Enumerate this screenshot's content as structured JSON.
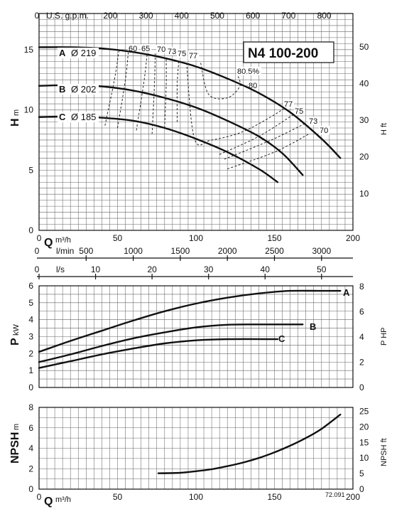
{
  "title": "N4 100-200",
  "footnote": "72.091",
  "chart_data": [
    {
      "id": "head",
      "type": "line",
      "title": "N4 100-200",
      "ylabel": "H",
      "ylabel_unit": "m",
      "y2label": "H ft",
      "xlabel": "Q",
      "xlabel_unit": "m³/h",
      "xlim": [
        0,
        200
      ],
      "ylim": [
        0,
        18
      ],
      "y2lim": [
        0,
        59.055
      ],
      "x_ticks": [
        0,
        50,
        100,
        150,
        200
      ],
      "y_ticks": [
        0,
        5,
        10,
        15
      ],
      "y2_ticks": [
        10,
        20,
        30,
        40,
        50
      ],
      "top_axis": {
        "label": "U.S. g.p.m.",
        "factor": 4.4029,
        "ticks": [
          200,
          300,
          400,
          500,
          600,
          700,
          800
        ]
      },
      "bottom_axis2": {
        "label": "l/min",
        "factor": 16.6667,
        "ticks": [
          500,
          1000,
          1500,
          2000,
          2500,
          3000
        ]
      },
      "bottom_axis3": {
        "label": "l/s",
        "factor": 0.27778,
        "ticks": [
          0,
          10,
          20,
          30,
          40,
          50
        ]
      },
      "grid": true,
      "series": [
        {
          "name": "A",
          "diameter_label": "Ø 219",
          "x": [
            0,
            20,
            40,
            60,
            80,
            100,
            120,
            140,
            160,
            180,
            192
          ],
          "y": [
            15.2,
            15.2,
            15.1,
            14.8,
            14.3,
            13.6,
            12.6,
            11.4,
            9.8,
            7.6,
            6.0
          ]
        },
        {
          "name": "B",
          "diameter_label": "Ø 202",
          "x": [
            0,
            20,
            40,
            60,
            80,
            100,
            120,
            140,
            155,
            168
          ],
          "y": [
            12.0,
            12.05,
            11.95,
            11.6,
            11.0,
            10.2,
            9.1,
            7.8,
            6.4,
            4.6
          ]
        },
        {
          "name": "C",
          "diameter_label": "Ø 185",
          "x": [
            0,
            20,
            40,
            60,
            80,
            100,
            120,
            140,
            152
          ],
          "y": [
            9.4,
            9.45,
            9.35,
            9.1,
            8.5,
            7.6,
            6.5,
            5.1,
            4.0
          ]
        }
      ],
      "efficiency_labels": [
        "60",
        "65",
        "70",
        "73",
        "75",
        "77",
        "80.5%",
        "80",
        "77",
        "75",
        "73",
        "70"
      ],
      "efficiency_curves": [
        {
          "name": "60",
          "x": [
            42,
            48,
            51
          ],
          "y": [
            8.7,
            12.5,
            15.0
          ]
        },
        {
          "name": "65",
          "x": [
            50,
            55,
            57
          ],
          "y": [
            8.5,
            12.5,
            15.0
          ]
        },
        {
          "name": "70",
          "x": [
            62,
            67,
            69
          ],
          "y": [
            8.3,
            12.5,
            14.8
          ]
        },
        {
          "name": "73",
          "x": [
            72,
            73.5,
            74
          ],
          "y": [
            8.0,
            12.0,
            14.7
          ]
        },
        {
          "name": "75",
          "x": [
            80,
            81,
            81
          ],
          "y": [
            8.5,
            12.0,
            14.3
          ]
        },
        {
          "name": "77",
          "x": [
            88,
            88,
            89
          ],
          "y": [
            9.0,
            12.0,
            14.0
          ]
        },
        {
          "name": "80.5%",
          "x": [
            103,
            108,
            120,
            128,
            126
          ],
          "y": [
            13.9,
            11.3,
            11.0,
            12.0,
            13.0
          ]
        },
        {
          "name": "77-right",
          "x": [
            94,
            99,
            110,
            130,
            150,
            160
          ],
          "y": [
            13.9,
            7.6,
            7.5,
            8.2,
            9.6,
            10.5
          ]
        },
        {
          "name": "75-right",
          "x": [
            115,
            140,
            162
          ],
          "y": [
            6.3,
            7.8,
            9.6
          ]
        },
        {
          "name": "73-right",
          "x": [
            118,
            148,
            170
          ],
          "y": [
            5.9,
            7.5,
            8.9
          ]
        },
        {
          "name": "70-right",
          "x": [
            120,
            150,
            172
          ],
          "y": [
            5.1,
            6.5,
            8.0
          ]
        }
      ]
    },
    {
      "id": "power",
      "type": "line",
      "ylabel": "P",
      "ylabel_unit": "kW",
      "y2label": "P HP",
      "xlim": [
        0,
        200
      ],
      "ylim": [
        0,
        6
      ],
      "y2lim": [
        0,
        8.046
      ],
      "y_ticks": [
        0,
        1,
        2,
        3,
        4,
        5,
        6
      ],
      "y2_ticks": [
        0,
        2,
        4,
        6,
        8
      ],
      "grid": true,
      "series": [
        {
          "name": "A",
          "x": [
            0,
            20,
            40,
            60,
            80,
            100,
            120,
            140,
            160,
            180,
            192
          ],
          "y": [
            2.1,
            2.75,
            3.35,
            3.95,
            4.5,
            4.95,
            5.3,
            5.55,
            5.7,
            5.7,
            5.7
          ]
        },
        {
          "name": "B",
          "x": [
            0,
            20,
            40,
            60,
            80,
            100,
            120,
            140,
            168
          ],
          "y": [
            1.5,
            1.95,
            2.45,
            2.9,
            3.25,
            3.55,
            3.7,
            3.72,
            3.72
          ]
        },
        {
          "name": "C",
          "x": [
            0,
            20,
            40,
            60,
            80,
            100,
            120,
            152
          ],
          "y": [
            1.15,
            1.55,
            1.95,
            2.3,
            2.6,
            2.78,
            2.85,
            2.85
          ]
        }
      ]
    },
    {
      "id": "npsh",
      "type": "line",
      "ylabel": "NPSH",
      "ylabel_unit": "m",
      "y2label": "NPSH ft",
      "xlabel": "Q",
      "xlabel_unit": "m³/h",
      "xlim": [
        0,
        200
      ],
      "ylim": [
        0,
        8
      ],
      "y2lim": [
        0,
        26.247
      ],
      "x_ticks": [
        0,
        50,
        100,
        150,
        200
      ],
      "y_ticks": [
        0,
        2,
        4,
        6,
        8
      ],
      "y2_ticks": [
        0,
        5,
        10,
        15,
        20,
        25
      ],
      "grid": true,
      "series": [
        {
          "name": "NPSH",
          "x": [
            76,
            90,
            100,
            110,
            120,
            130,
            140,
            150,
            160,
            170,
            180,
            192
          ],
          "y": [
            1.55,
            1.6,
            1.75,
            1.95,
            2.25,
            2.6,
            3.05,
            3.6,
            4.25,
            5.0,
            5.9,
            7.3
          ]
        }
      ]
    }
  ]
}
